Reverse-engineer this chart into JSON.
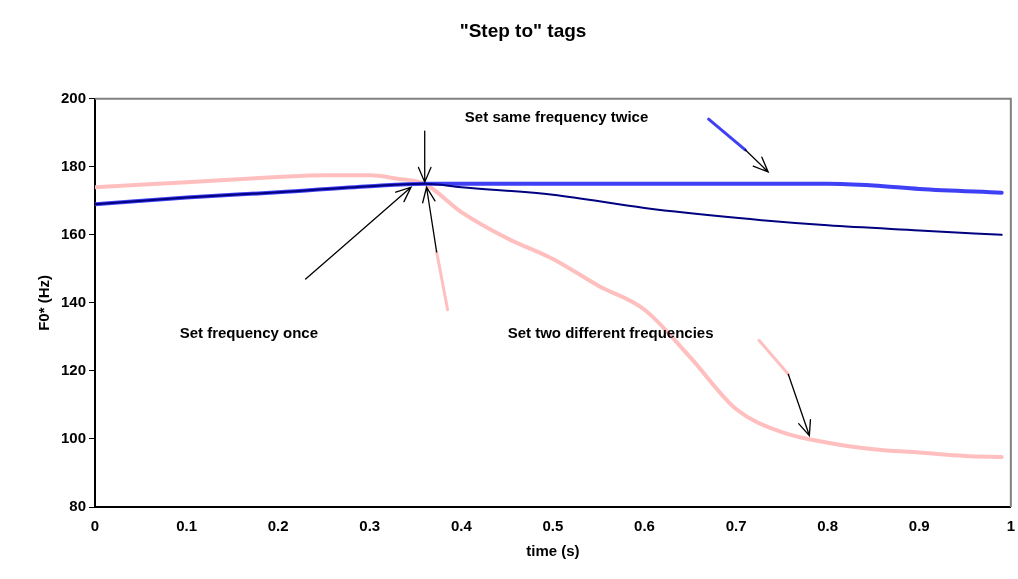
{
  "chart_data": {
    "type": "line",
    "title": "\"Step to\" tags",
    "xlabel": "time (s)",
    "ylabel": "F0* (Hz)",
    "xlim": [
      0,
      1
    ],
    "xticks": [
      0,
      0.1,
      0.2,
      0.3,
      0.4,
      0.5,
      0.6,
      0.7,
      0.8,
      0.9,
      1
    ],
    "ylim": [
      80,
      200
    ],
    "yticks": [
      80,
      100,
      120,
      140,
      160,
      180,
      200
    ],
    "grid": false,
    "legend": false,
    "marker": "none",
    "line_style": "solid",
    "series": [
      {
        "color": "#000080",
        "x": [
          0,
          0.1,
          0.2,
          0.3,
          0.36,
          0.4,
          0.5,
          0.6,
          0.7,
          0.8,
          0.9,
          0.99
        ],
        "values": [
          169,
          171,
          172.5,
          174.3,
          175,
          174,
          171.8,
          167.9,
          165,
          162.8,
          161.3,
          160
        ]
      },
      {
        "color": "#3f3ff5",
        "x": [
          0,
          0.1,
          0.2,
          0.3,
          0.36,
          0.5,
          0.6,
          0.7,
          0.8,
          0.85,
          0.9,
          0.99
        ],
        "values": [
          169,
          171,
          172.5,
          174.3,
          175,
          175,
          175,
          175,
          175,
          174.5,
          173.5,
          172.4
        ]
      },
      {
        "color": "#ffbfbf",
        "x": [
          0,
          0.1,
          0.2,
          0.25,
          0.3,
          0.33,
          0.36,
          0.4,
          0.45,
          0.5,
          0.55,
          0.6,
          0.65,
          0.7,
          0.75,
          0.8,
          0.85,
          0.9,
          0.95,
          0.99
        ],
        "values": [
          174,
          175.5,
          177,
          177.5,
          177.5,
          176.5,
          175,
          166.7,
          159,
          152.9,
          145,
          138,
          124,
          108.8,
          102,
          98.9,
          97,
          96,
          95,
          94.7
        ]
      }
    ],
    "annotations": [
      "Set same frequency twice",
      "Set frequency once",
      "Set two different frequencies"
    ]
  }
}
